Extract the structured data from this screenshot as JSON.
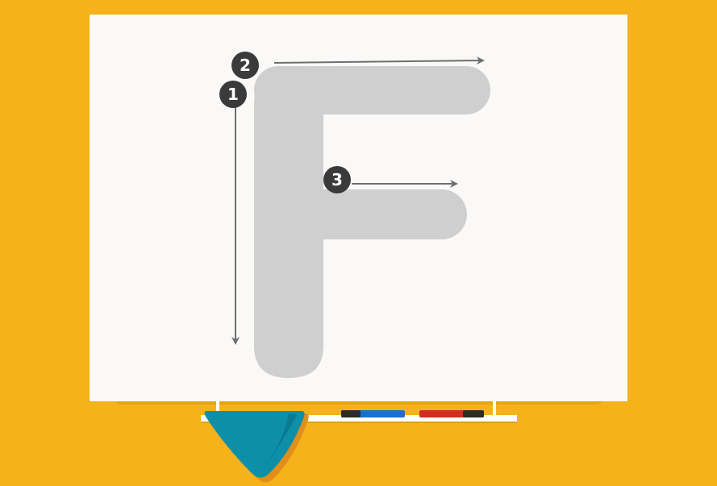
{
  "activity": {
    "letter": "F",
    "letter_color": "#CFCFCF",
    "guide_color": "#6E6E6E",
    "badge_color": "#3A3A3A"
  },
  "steps": [
    {
      "number": "1",
      "direction": "down"
    },
    {
      "number": "2",
      "direction": "right"
    },
    {
      "number": "3",
      "direction": "right"
    }
  ],
  "colors": {
    "background": "#F6B21A",
    "board": "#FAF9F7",
    "tray": "#FFFFFF",
    "eraser": "#0E8FA8",
    "marker_blue": "#1E6FC9",
    "marker_red": "#D42A2A"
  },
  "tray_items": [
    {
      "icon": "blue-marker-icon"
    },
    {
      "icon": "red-marker-icon"
    },
    {
      "icon": "eraser-icon"
    }
  ]
}
